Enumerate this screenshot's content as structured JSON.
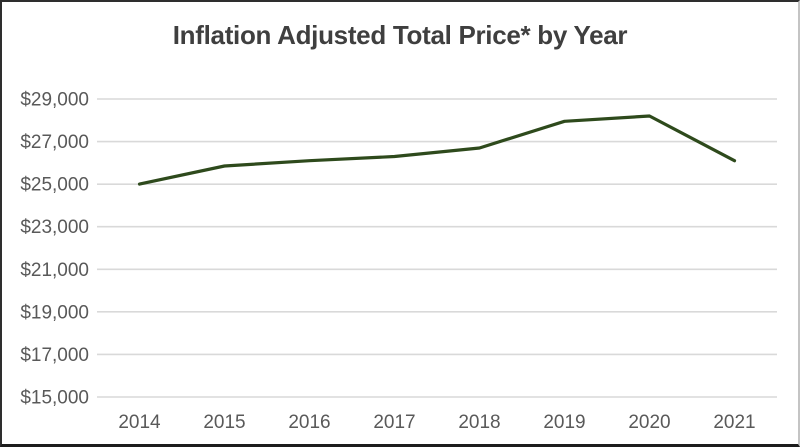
{
  "title": "Inflation Adjusted Total Price* by Year",
  "chart_data": {
    "type": "line",
    "title": "Inflation Adjusted Total Price* by Year",
    "categories": [
      "2014",
      "2015",
      "2016",
      "2017",
      "2018",
      "2019",
      "2020",
      "2021"
    ],
    "series": [
      {
        "name": "Inflation Adjusted Total Price",
        "values": [
          25000,
          25850,
          26100,
          26300,
          26700,
          27950,
          28200,
          26100
        ]
      }
    ],
    "xlabel": "",
    "ylabel": "",
    "ylim": [
      15000,
      29000
    ],
    "y_tick_step": 2000,
    "y_tick_labels": [
      "$15,000",
      "$17,000",
      "$19,000",
      "$21,000",
      "$23,000",
      "$25,000",
      "$27,000",
      "$29,000"
    ],
    "grid": "horizontal",
    "legend": "none",
    "markers": "none",
    "colors": {
      "line": "#2e4a1c",
      "gridline": "#d9d9d9",
      "axis_text": "#595959",
      "title_text": "#3f3f3f",
      "background": "#ffffff"
    }
  }
}
